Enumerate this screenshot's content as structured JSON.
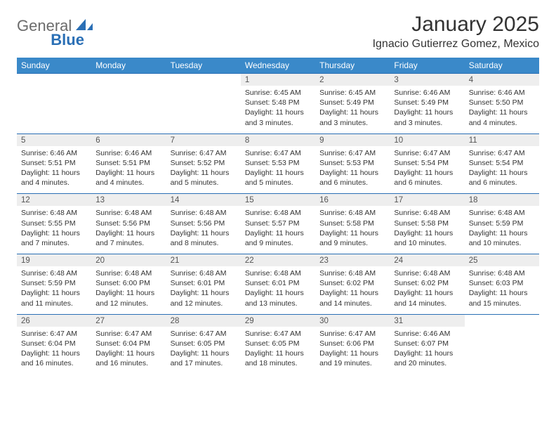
{
  "logo": {
    "word1": "General",
    "word2": "Blue"
  },
  "title": "January 2025",
  "location": "Ignacio Gutierrez Gomez, Mexico",
  "colors": {
    "header_bg": "#3a89c9",
    "header_text": "#ffffff",
    "daynum_bg": "#eeeeee",
    "rule": "#2a6fb5",
    "logo_gray": "#6b6b6b",
    "logo_blue": "#2a6fb5",
    "body_text": "#333333"
  },
  "day_headers": [
    "Sunday",
    "Monday",
    "Tuesday",
    "Wednesday",
    "Thursday",
    "Friday",
    "Saturday"
  ],
  "weeks": [
    [
      null,
      null,
      null,
      {
        "n": "1",
        "sr": "6:45 AM",
        "ss": "5:48 PM",
        "dl": "11 hours and 3 minutes."
      },
      {
        "n": "2",
        "sr": "6:45 AM",
        "ss": "5:49 PM",
        "dl": "11 hours and 3 minutes."
      },
      {
        "n": "3",
        "sr": "6:46 AM",
        "ss": "5:49 PM",
        "dl": "11 hours and 3 minutes."
      },
      {
        "n": "4",
        "sr": "6:46 AM",
        "ss": "5:50 PM",
        "dl": "11 hours and 4 minutes."
      }
    ],
    [
      {
        "n": "5",
        "sr": "6:46 AM",
        "ss": "5:51 PM",
        "dl": "11 hours and 4 minutes."
      },
      {
        "n": "6",
        "sr": "6:46 AM",
        "ss": "5:51 PM",
        "dl": "11 hours and 4 minutes."
      },
      {
        "n": "7",
        "sr": "6:47 AM",
        "ss": "5:52 PM",
        "dl": "11 hours and 5 minutes."
      },
      {
        "n": "8",
        "sr": "6:47 AM",
        "ss": "5:53 PM",
        "dl": "11 hours and 5 minutes."
      },
      {
        "n": "9",
        "sr": "6:47 AM",
        "ss": "5:53 PM",
        "dl": "11 hours and 6 minutes."
      },
      {
        "n": "10",
        "sr": "6:47 AM",
        "ss": "5:54 PM",
        "dl": "11 hours and 6 minutes."
      },
      {
        "n": "11",
        "sr": "6:47 AM",
        "ss": "5:54 PM",
        "dl": "11 hours and 6 minutes."
      }
    ],
    [
      {
        "n": "12",
        "sr": "6:48 AM",
        "ss": "5:55 PM",
        "dl": "11 hours and 7 minutes."
      },
      {
        "n": "13",
        "sr": "6:48 AM",
        "ss": "5:56 PM",
        "dl": "11 hours and 7 minutes."
      },
      {
        "n": "14",
        "sr": "6:48 AM",
        "ss": "5:56 PM",
        "dl": "11 hours and 8 minutes."
      },
      {
        "n": "15",
        "sr": "6:48 AM",
        "ss": "5:57 PM",
        "dl": "11 hours and 9 minutes."
      },
      {
        "n": "16",
        "sr": "6:48 AM",
        "ss": "5:58 PM",
        "dl": "11 hours and 9 minutes."
      },
      {
        "n": "17",
        "sr": "6:48 AM",
        "ss": "5:58 PM",
        "dl": "11 hours and 10 minutes."
      },
      {
        "n": "18",
        "sr": "6:48 AM",
        "ss": "5:59 PM",
        "dl": "11 hours and 10 minutes."
      }
    ],
    [
      {
        "n": "19",
        "sr": "6:48 AM",
        "ss": "5:59 PM",
        "dl": "11 hours and 11 minutes."
      },
      {
        "n": "20",
        "sr": "6:48 AM",
        "ss": "6:00 PM",
        "dl": "11 hours and 12 minutes."
      },
      {
        "n": "21",
        "sr": "6:48 AM",
        "ss": "6:01 PM",
        "dl": "11 hours and 12 minutes."
      },
      {
        "n": "22",
        "sr": "6:48 AM",
        "ss": "6:01 PM",
        "dl": "11 hours and 13 minutes."
      },
      {
        "n": "23",
        "sr": "6:48 AM",
        "ss": "6:02 PM",
        "dl": "11 hours and 14 minutes."
      },
      {
        "n": "24",
        "sr": "6:48 AM",
        "ss": "6:02 PM",
        "dl": "11 hours and 14 minutes."
      },
      {
        "n": "25",
        "sr": "6:48 AM",
        "ss": "6:03 PM",
        "dl": "11 hours and 15 minutes."
      }
    ],
    [
      {
        "n": "26",
        "sr": "6:47 AM",
        "ss": "6:04 PM",
        "dl": "11 hours and 16 minutes."
      },
      {
        "n": "27",
        "sr": "6:47 AM",
        "ss": "6:04 PM",
        "dl": "11 hours and 16 minutes."
      },
      {
        "n": "28",
        "sr": "6:47 AM",
        "ss": "6:05 PM",
        "dl": "11 hours and 17 minutes."
      },
      {
        "n": "29",
        "sr": "6:47 AM",
        "ss": "6:05 PM",
        "dl": "11 hours and 18 minutes."
      },
      {
        "n": "30",
        "sr": "6:47 AM",
        "ss": "6:06 PM",
        "dl": "11 hours and 19 minutes."
      },
      {
        "n": "31",
        "sr": "6:46 AM",
        "ss": "6:07 PM",
        "dl": "11 hours and 20 minutes."
      },
      null
    ]
  ],
  "labels": {
    "sunrise": "Sunrise:",
    "sunset": "Sunset:",
    "daylight": "Daylight:"
  }
}
